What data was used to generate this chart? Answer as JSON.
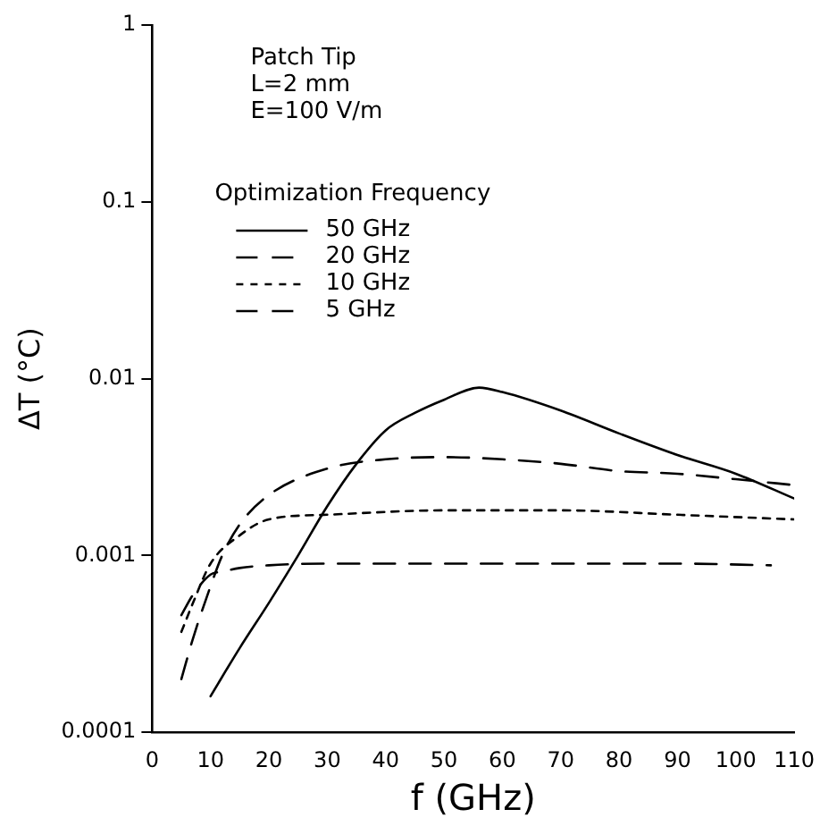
{
  "chart_data": {
    "type": "line",
    "xlabel": "f (GHz)",
    "ylabel": "ΔT (°C)",
    "legend_title": "Optimization Frequency",
    "legend": "top left",
    "grid": false,
    "log": "y",
    "marker": "none",
    "annotations": [
      "Patch Tip",
      "L=2 mm",
      "E=100 V/m"
    ],
    "xlim": [
      0,
      110
    ],
    "xticks": [
      0,
      10,
      20,
      30,
      40,
      50,
      60,
      70,
      80,
      90,
      100,
      110
    ],
    "ylim": [
      0.0001,
      1
    ],
    "yticks": [
      0.0001,
      0.001,
      0.01,
      0.1,
      1
    ],
    "series": [
      {
        "name": "50 GHz",
        "color": "#000000",
        "line_style": "solid",
        "x": [
          10,
          15,
          20,
          25,
          30,
          35,
          40,
          45,
          50,
          56,
          60,
          70,
          80,
          90,
          100,
          110
        ],
        "values": [
          0.00016,
          0.0003,
          0.00054,
          0.001,
          0.0019,
          0.0033,
          0.0051,
          0.0064,
          0.0076,
          0.0089,
          0.0084,
          0.0066,
          0.0049,
          0.0037,
          0.0029,
          0.0021
        ]
      },
      {
        "name": "20 GHz",
        "color": "#000000",
        "line_style": "dashed",
        "x": [
          5,
          7,
          10,
          12,
          15,
          20,
          30,
          40,
          50,
          60,
          70,
          80,
          90,
          100,
          110
        ],
        "values": [
          0.0002,
          0.00034,
          0.00067,
          0.001,
          0.0015,
          0.0022,
          0.0031,
          0.0035,
          0.0036,
          0.0035,
          0.0033,
          0.003,
          0.0029,
          0.0027,
          0.0025
        ]
      },
      {
        "name": "10 GHz",
        "color": "#000000",
        "line_style": "dotted",
        "x": [
          5,
          7,
          10,
          15,
          20,
          30,
          50,
          70,
          90,
          110
        ],
        "values": [
          0.00037,
          0.00054,
          0.0009,
          0.0013,
          0.0016,
          0.0017,
          0.0018,
          0.0018,
          0.0017,
          0.0016
        ]
      },
      {
        "name": "5 GHz",
        "color": "#000000",
        "line_style": "dashed",
        "x": [
          5,
          7,
          10,
          12,
          15,
          20,
          30,
          50,
          70,
          90,
          106
        ],
        "values": [
          0.00046,
          0.0006,
          0.00078,
          0.00081,
          0.00085,
          0.00088,
          0.0009,
          0.0009,
          0.0009,
          0.0009,
          0.00088
        ]
      }
    ]
  }
}
